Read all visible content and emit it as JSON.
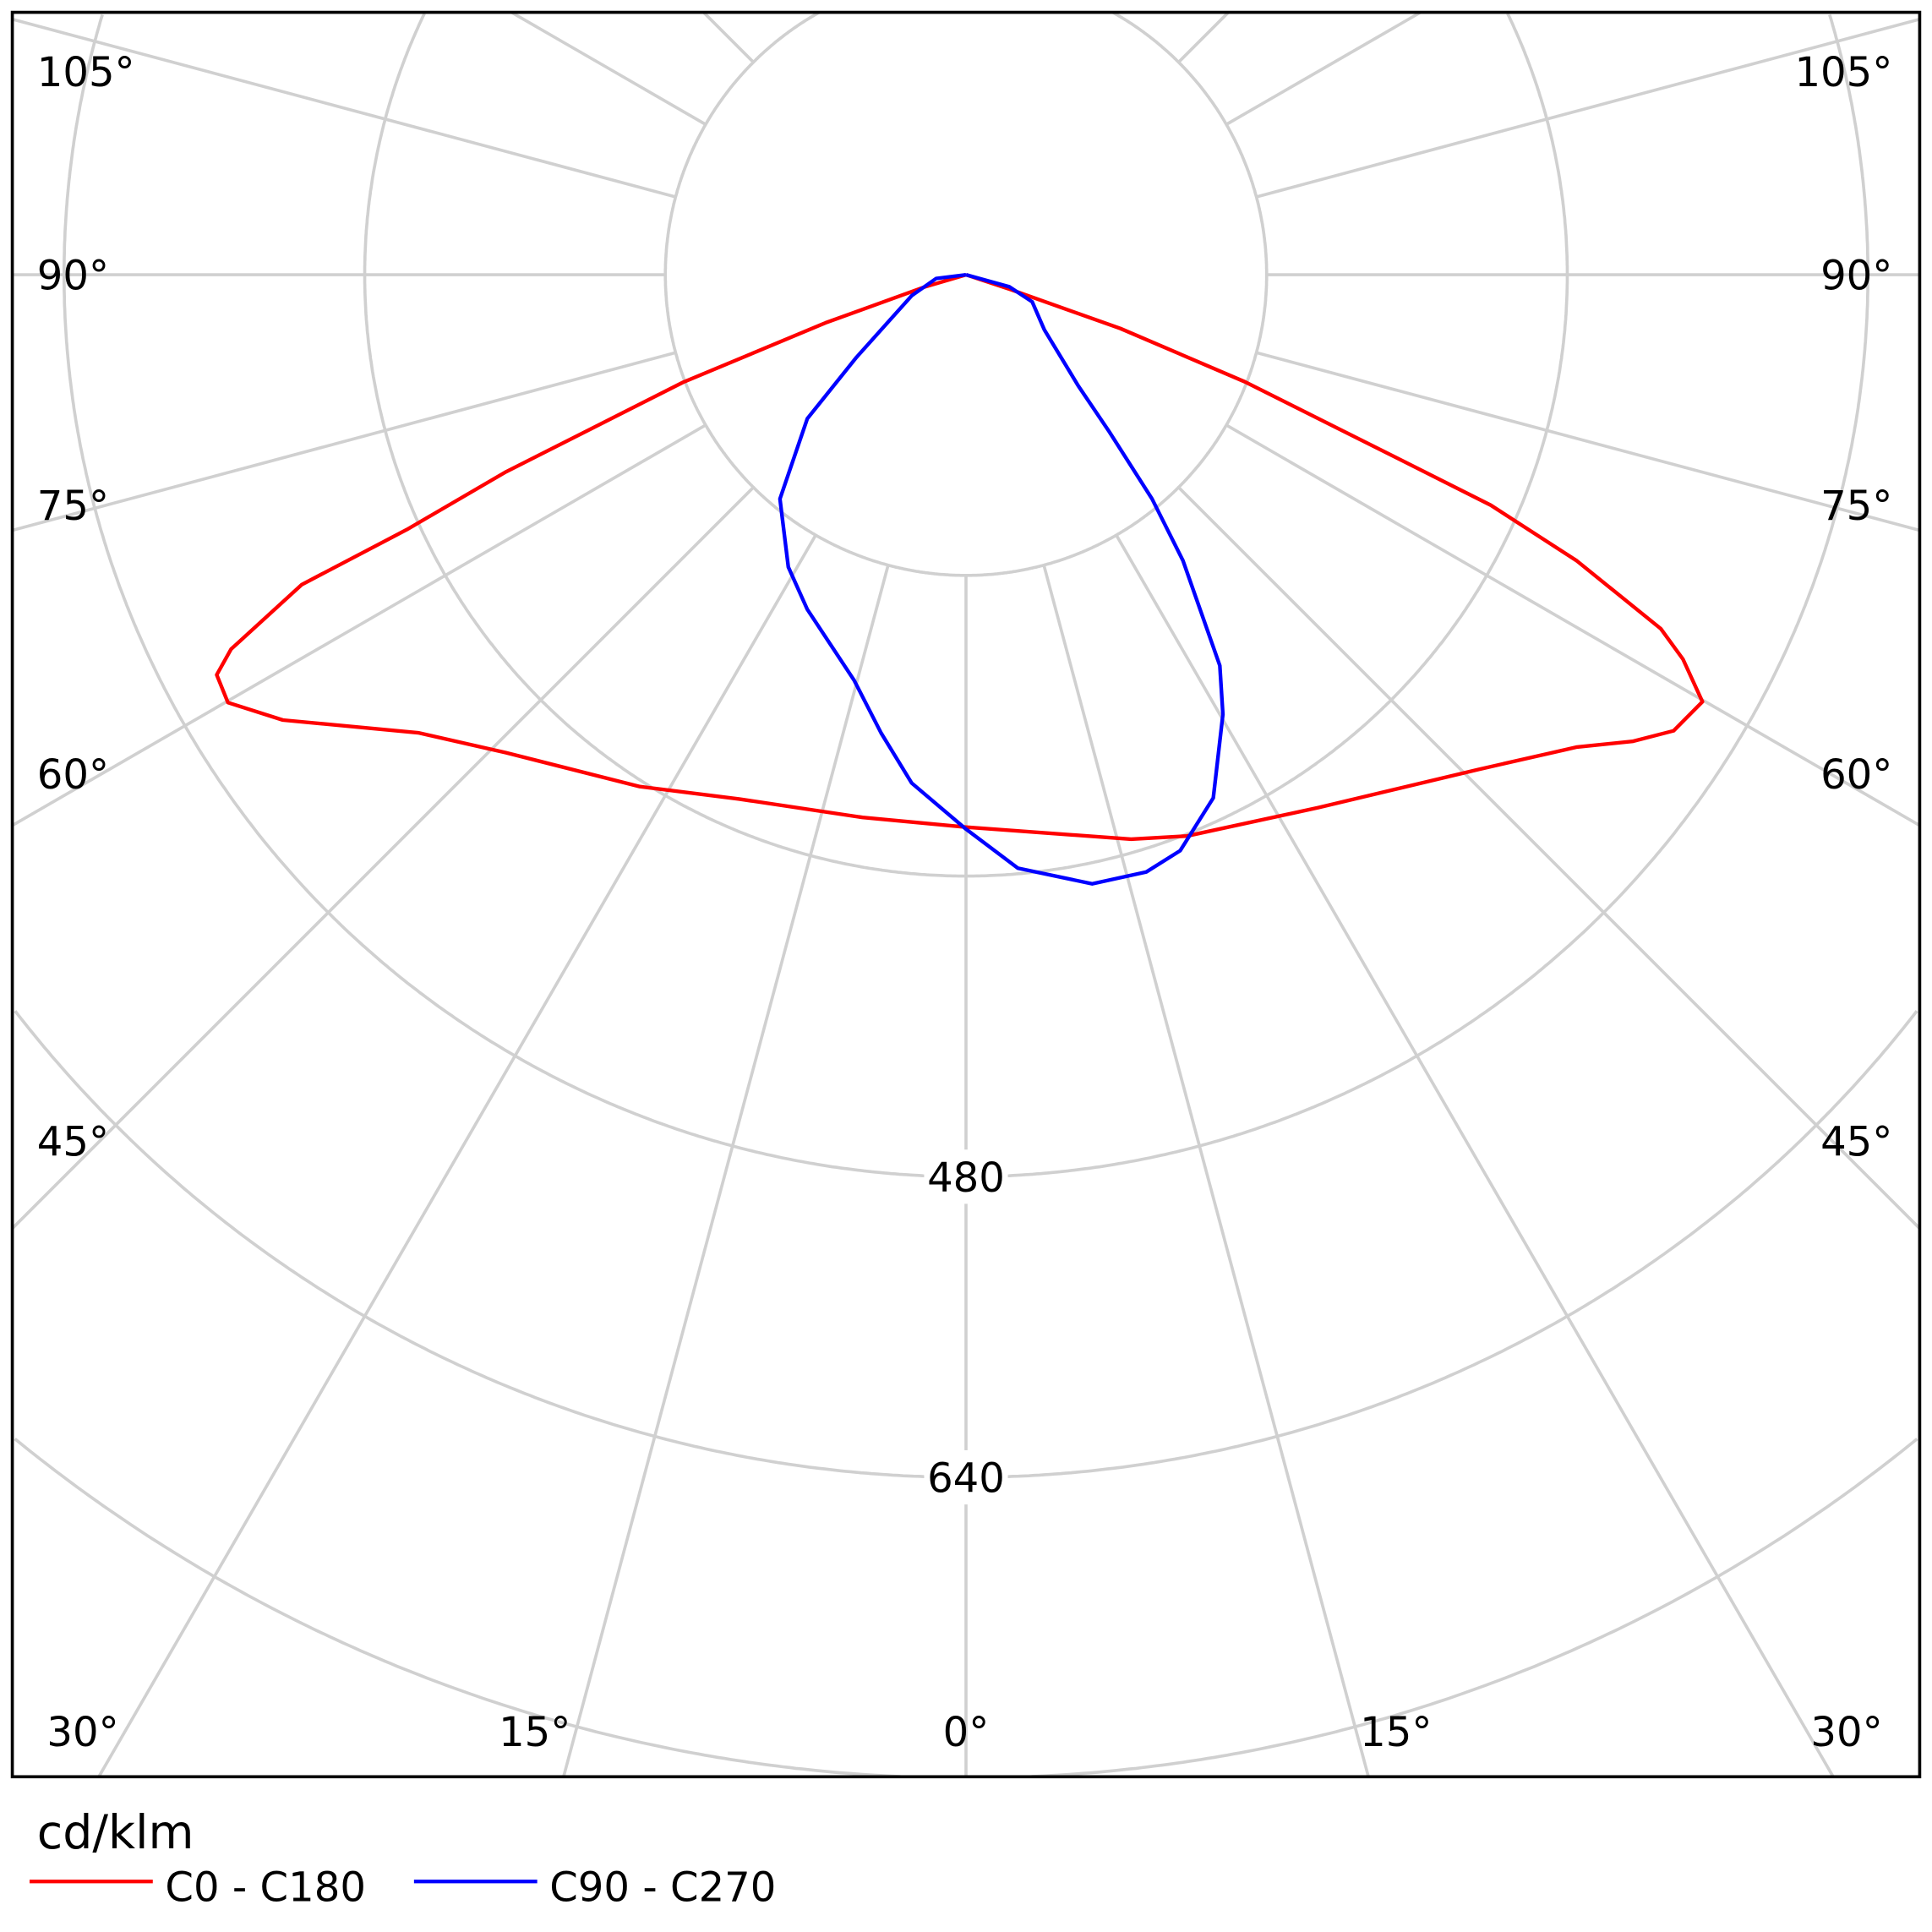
{
  "chart_data": {
    "type": "polar",
    "unit_label": "cd/klm",
    "radial_ticks": [
      160,
      320,
      480,
      640,
      800
    ],
    "radial_tick_labels": [
      "480",
      "640"
    ],
    "angle_labels": [
      "105°",
      "90°",
      "75°",
      "60°",
      "45°",
      "30°",
      "15°",
      "0°",
      "15°",
      "30°",
      "45°",
      "60°",
      "75°",
      "90°",
      "105°"
    ],
    "grid": true,
    "legend_position": "bottom-left",
    "series": [
      {
        "name": "C0 - C180",
        "color": "#ff0000",
        "points": [
          [
            -90,
            0
          ],
          [
            -73.6,
            23
          ],
          [
            -71.1,
            79
          ],
          [
            -69.2,
            161
          ],
          [
            -66.8,
            267
          ],
          [
            -65.5,
            327
          ],
          [
            -65,
            390
          ],
          [
            -63,
            439
          ],
          [
            -61.9,
            452
          ],
          [
            -59.9,
            454
          ],
          [
            -56.9,
            434
          ],
          [
            -50.1,
            380
          ],
          [
            -43.9,
            353
          ],
          [
            -32.5,
            323
          ],
          [
            -23.4,
            304
          ],
          [
            -10.8,
            294
          ],
          [
            0,
            294
          ],
          [
            16.3,
            313
          ],
          [
            21.5,
            321
          ],
          [
            33.5,
            340
          ],
          [
            46,
            379
          ],
          [
            52.3,
            411
          ],
          [
            55,
            433
          ],
          [
            57.2,
            448
          ],
          [
            59.9,
            453
          ],
          [
            61.8,
            433
          ],
          [
            63,
            415
          ],
          [
            64.9,
            359
          ],
          [
            66.3,
            305
          ],
          [
            66.9,
            254
          ],
          [
            69,
            159
          ],
          [
            70.8,
            87
          ],
          [
            71.6,
            25
          ],
          [
            90,
            0
          ]
        ]
      },
      {
        "name": "C90 - C270",
        "color": "#0000ff",
        "points": [
          [
            -90,
            0
          ],
          [
            -82.9,
            16
          ],
          [
            -68.9,
            31
          ],
          [
            -53,
            73
          ],
          [
            -47.8,
            114
          ],
          [
            -39.7,
            155
          ],
          [
            -31.3,
            182
          ],
          [
            -25.4,
            197
          ],
          [
            -15.4,
            224
          ],
          [
            -10.5,
            248
          ],
          [
            -6.1,
            272
          ],
          [
            0,
            295
          ],
          [
            5,
            317
          ],
          [
            11.7,
            331
          ],
          [
            16.8,
            332
          ],
          [
            20.4,
            327
          ],
          [
            25.3,
            308
          ],
          [
            30.3,
            271
          ],
          [
            33,
            248
          ],
          [
            37.2,
            191
          ],
          [
            39.7,
            155
          ],
          [
            42.4,
            113
          ],
          [
            45.3,
            84
          ],
          [
            54.9,
            51
          ],
          [
            67.8,
            38
          ],
          [
            74.5,
            24
          ],
          [
            90,
            0
          ]
        ]
      }
    ]
  }
}
